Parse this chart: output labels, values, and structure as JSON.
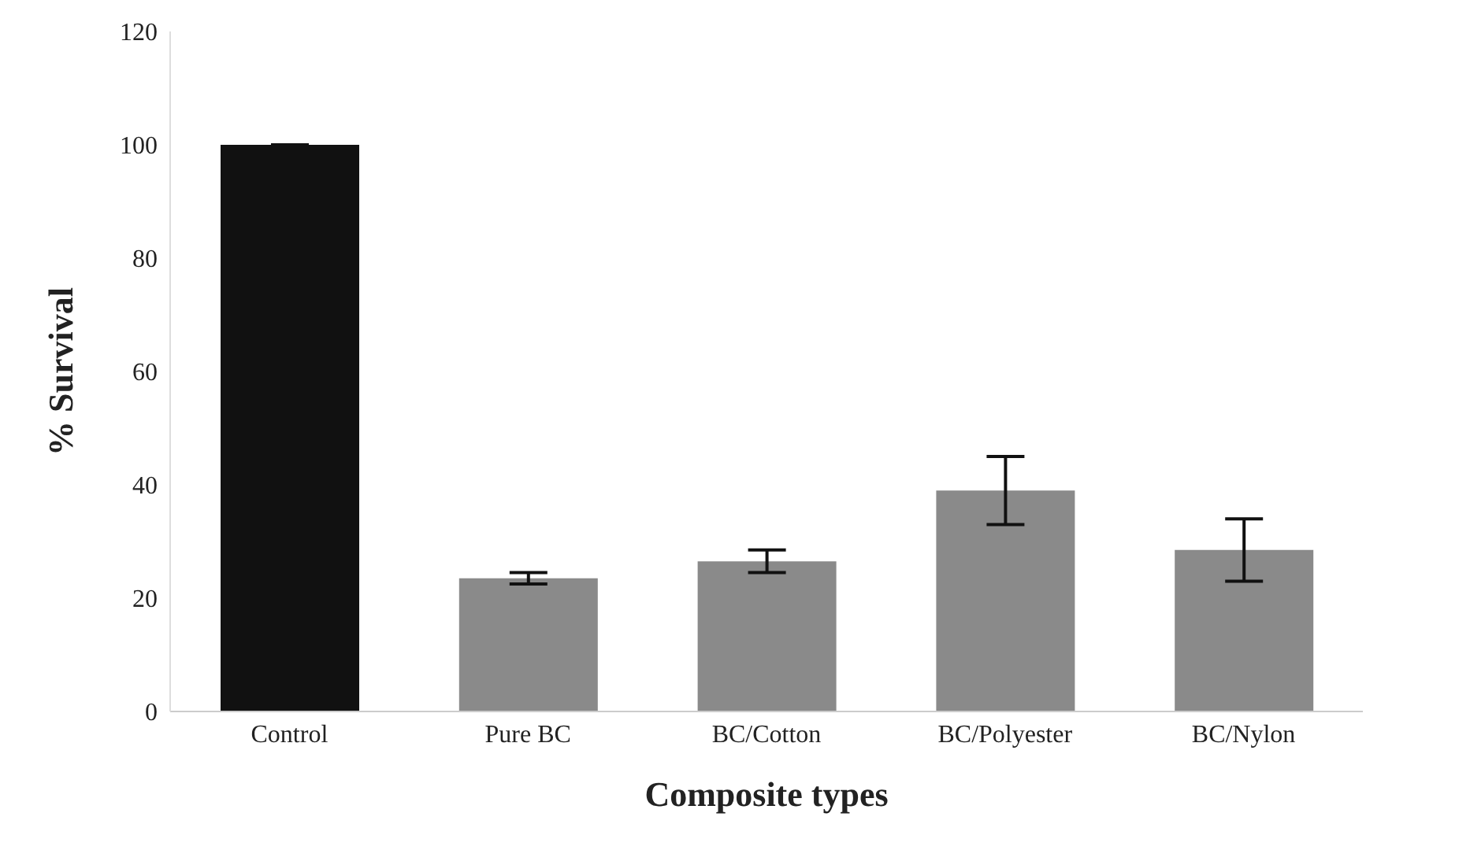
{
  "chart_data": {
    "type": "bar",
    "xlabel": "Composite types",
    "ylabel": "% Survival",
    "categories": [
      "Control",
      "Pure BC",
      "BC/Cotton",
      "BC/Polyester",
      "BC/Nylon"
    ],
    "values": [
      100,
      23.5,
      26.5,
      39,
      28.5
    ],
    "errors": [
      null,
      1,
      2,
      6,
      5.5
    ],
    "colors": [
      "#111111",
      "#8a8a8a",
      "#8a8a8a",
      "#8a8a8a",
      "#8a8a8a"
    ],
    "ylim": [
      0,
      120
    ],
    "yticks": [
      0,
      20,
      40,
      60,
      80,
      100,
      120
    ],
    "grid": false
  }
}
